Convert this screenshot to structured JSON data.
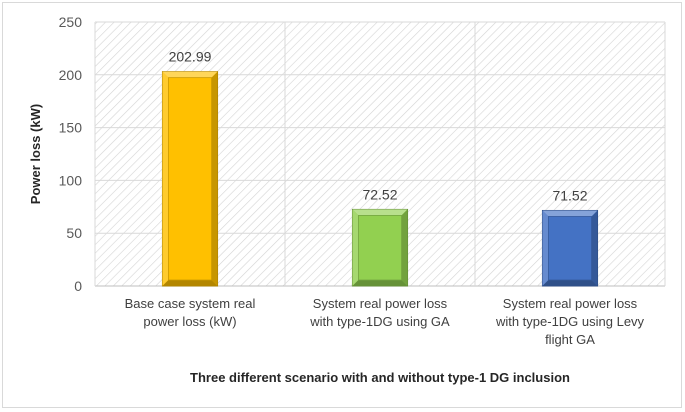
{
  "chart_data": {
    "type": "bar",
    "title": "",
    "categories": [
      [
        "Base case system real",
        "power loss (kW)"
      ],
      [
        "System real power loss",
        "with type-1DG using GA"
      ],
      [
        "System real power loss",
        "with type-1DG using Levy",
        "flight GA"
      ]
    ],
    "values": [
      202.99,
      72.52,
      71.52
    ],
    "value_labels": [
      "202.99",
      "72.52",
      "71.52"
    ],
    "bar_colors": [
      "#FFC000",
      "#92D050",
      "#4472C4"
    ],
    "xlabel": "Three different scenario with and without type-1 DG inclusion",
    "ylabel": "Power loss (kW)",
    "ylim": [
      0,
      250
    ],
    "yticks": [
      0,
      50,
      100,
      150,
      200,
      250
    ],
    "grid": true,
    "legend": "none"
  }
}
